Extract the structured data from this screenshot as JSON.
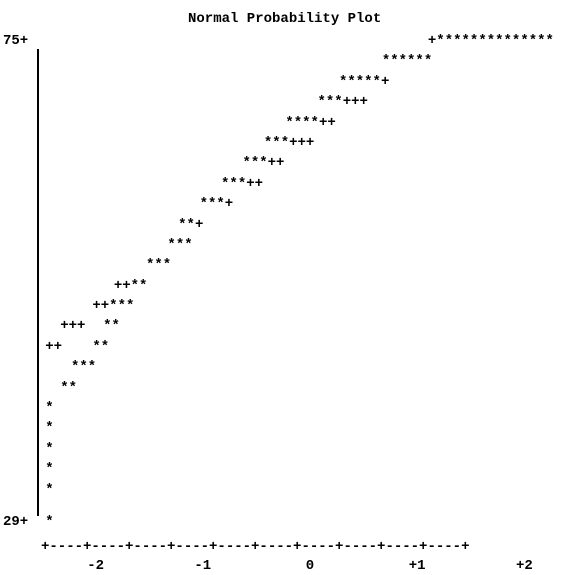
{
  "chart_data": {
    "type": "scatter",
    "title": "Normal Probability Plot",
    "xlabel": "",
    "ylabel": "",
    "y_tick_labels": [
      "75+",
      "29+"
    ],
    "x_tick_labels": [
      "-2",
      "-1",
      "0",
      "+1",
      "+2"
    ],
    "x_axis_line": "+----+----+----+----+----+----+----+----+----+----+",
    "y_range": [
      29,
      75
    ],
    "x_range": [
      -2.5,
      2.5
    ],
    "grid": false,
    "legend": "none",
    "rows": [
      {
        "y": 75,
        "cells": [
          {
            "x": 1.1,
            "text": "+**************"
          }
        ]
      },
      {
        "y": 73.05,
        "cells": [
          {
            "x": 0.67,
            "text": "******"
          }
        ]
      },
      {
        "y": 71.1,
        "cells": [
          {
            "x": 0.27,
            "text": "*****+"
          }
        ]
      },
      {
        "y": 69.15,
        "cells": [
          {
            "x": 0.07,
            "text": "***+++"
          }
        ]
      },
      {
        "y": 67.2,
        "cells": [
          {
            "x": -0.23,
            "text": "****++"
          }
        ]
      },
      {
        "y": 65.25,
        "cells": [
          {
            "x": -0.43,
            "text": "***+++"
          }
        ]
      },
      {
        "y": 63.3,
        "cells": [
          {
            "x": -0.63,
            "text": "***++"
          }
        ]
      },
      {
        "y": 61.35,
        "cells": [
          {
            "x": -0.83,
            "text": "***++"
          }
        ]
      },
      {
        "y": 59.4,
        "cells": [
          {
            "x": -1.03,
            "text": "***+"
          }
        ]
      },
      {
        "y": 57.45,
        "cells": [
          {
            "x": -1.23,
            "text": "**+"
          }
        ]
      },
      {
        "y": 55.5,
        "cells": [
          {
            "x": -1.33,
            "text": "***"
          }
        ]
      },
      {
        "y": 53.55,
        "cells": [
          {
            "x": -1.53,
            "text": "***"
          }
        ]
      },
      {
        "y": 51.6,
        "cells": [
          {
            "x": -1.83,
            "text": "++**"
          }
        ]
      },
      {
        "y": 49.65,
        "cells": [
          {
            "x": -2.03,
            "text": "++***"
          }
        ]
      },
      {
        "y": 47.7,
        "cells": [
          {
            "x": -2.33,
            "text": "+++"
          },
          {
            "x": -1.93,
            "text": "**"
          }
        ]
      },
      {
        "y": 45.75,
        "cells": [
          {
            "x": -2.47,
            "text": "++"
          },
          {
            "x": -2.03,
            "text": "**"
          }
        ]
      },
      {
        "y": 43.8,
        "cells": [
          {
            "x": -2.23,
            "text": "***"
          }
        ]
      },
      {
        "y": 41.85,
        "cells": [
          {
            "x": -2.33,
            "text": "**"
          }
        ]
      },
      {
        "y": 39.9,
        "cells": [
          {
            "x": -2.47,
            "text": "*"
          }
        ]
      },
      {
        "y": 37.95,
        "cells": [
          {
            "x": -2.47,
            "text": "*"
          }
        ]
      },
      {
        "y": 36.0,
        "cells": [
          {
            "x": -2.47,
            "text": "*"
          }
        ]
      },
      {
        "y": 34.05,
        "cells": [
          {
            "x": -2.47,
            "text": "*"
          }
        ]
      },
      {
        "y": 32.1,
        "cells": [
          {
            "x": -2.47,
            "text": "*"
          }
        ]
      },
      {
        "y": 29,
        "cells": [
          {
            "x": -2.47,
            "text": "*"
          }
        ]
      }
    ]
  }
}
